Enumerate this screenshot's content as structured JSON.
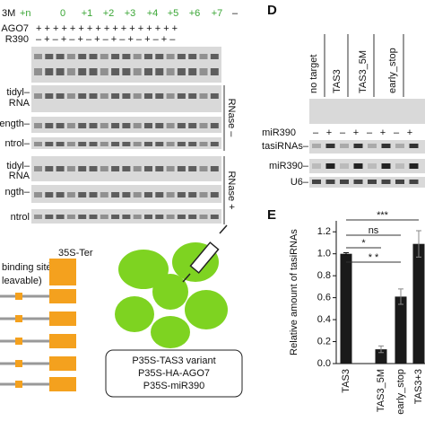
{
  "left_gels": {
    "header_prefix": "3M",
    "header_suffix": "+n",
    "lanes": [
      "0",
      "+1",
      "+2",
      "+3",
      "+4",
      "+5",
      "+6",
      "+7",
      "–"
    ],
    "rows": [
      {
        "label": "AGO7",
        "signs": "+ + + + + + + + + + + + + + + + +"
      },
      {
        "label": "R390",
        "signs": "– + – + – + – + – + – + – + – + –"
      }
    ],
    "blot_labels": [
      "tidyl–",
      "RNA",
      "ength–",
      "ntrol–",
      "tidyl–",
      "RNA",
      "ngth–",
      "ntrol"
    ],
    "treatments": [
      "RNase –",
      "RNase +"
    ]
  },
  "construct": {
    "terminator": "35S-Ter",
    "site_line1": "binding site",
    "site_line2": "leavable)"
  },
  "infiltration": {
    "lines": [
      "P35S-TAS3 variant",
      "P35S-HA-AGO7",
      "P35S-miR390"
    ]
  },
  "panel_d": {
    "letter": "D",
    "columns": [
      "no target",
      "TAS3",
      "TAS3_5M",
      "early_stop"
    ],
    "row_label": "miR390",
    "signs": [
      "–",
      "+",
      "–",
      "+",
      "–",
      "+",
      "–",
      "+"
    ],
    "blot_labels": [
      "tasiRNAs–",
      "miR390–",
      "U6–"
    ]
  },
  "chart_data": {
    "type": "bar",
    "letter": "E",
    "y_label": "Relative amount of tasiRNAs",
    "categories": [
      "TAS3",
      "TAS3_5M",
      "early_stop",
      "TAS3+3"
    ],
    "values": [
      1.0,
      0.13,
      0.61,
      1.09
    ],
    "errors": [
      0.01,
      0.03,
      0.07,
      0.12
    ],
    "color": "#1a1a1a",
    "ylim": [
      0,
      1.3
    ],
    "yticks": [
      {
        "value": 0,
        "label": "0.0"
      },
      0.2,
      0.4,
      0.6,
      0.8,
      {
        "value": 1,
        "label": "1.0"
      },
      1.2
    ],
    "annotations": [
      "***",
      "ns",
      "*",
      "* *"
    ]
  }
}
